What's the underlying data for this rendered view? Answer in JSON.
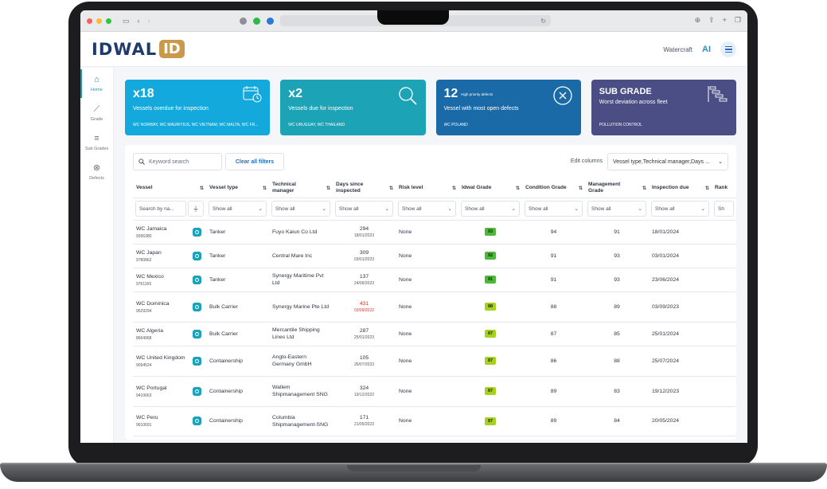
{
  "browser": {
    "address": "↻"
  },
  "header": {
    "logo_text": "IDWAL",
    "logo_badge": "ID",
    "nav_link": "Watercraft",
    "ai_label": "AI"
  },
  "sidebar": {
    "items": [
      {
        "label": "Home",
        "icon": "home-icon",
        "glyph": "⌂"
      },
      {
        "label": "Grade",
        "icon": "chart-icon",
        "glyph": "⟋"
      },
      {
        "label": "Sub Grades",
        "icon": "bars-icon",
        "glyph": "≡"
      },
      {
        "label": "Defects",
        "icon": "close-circle-icon",
        "glyph": "⊗"
      }
    ]
  },
  "cards": [
    {
      "big": "x18",
      "sub": "",
      "desc": "Vessels overdue for inspection",
      "ships": "WC NORWAY, WC MAURITIUS, WC VIETNAM, WC MALTA, WC FR...",
      "color": "#14a9dc",
      "icon": "calendar-clock-icon"
    },
    {
      "big": "x2",
      "sub": "",
      "desc": "Vessels due for inspection",
      "ships": "WC URUGUAY, WC THAILAND",
      "color": "#1ca4b6",
      "icon": "magnifier-icon"
    },
    {
      "big": "12",
      "sub": "High priority defects",
      "desc": "Vessel with most open defects",
      "ships": "WC POLAND",
      "color": "#1b6aa8",
      "icon": "x-circle-icon"
    },
    {
      "big": "SUB GRADE",
      "sub": "",
      "desc": "Worst deviation across fleet",
      "ships": "POLLUTION CONTROL",
      "color": "#4b4d85",
      "icon": "gantt-icon"
    }
  ],
  "toolbar": {
    "search_placeholder": "Keyword search",
    "clear_label": "Clear all filters",
    "edit_label": "Edit columns",
    "edit_value": "Vessel type,Technical manager,Days ..."
  },
  "table": {
    "headers": [
      "Vessel",
      "Vessel type",
      "Technical manager",
      "Days since inspected",
      "Risk level",
      "Idwal Grade",
      "Condition Grade",
      "Management Grade",
      "Inspection due",
      "Rank"
    ],
    "filters": {
      "search_placeholder": "Search by na...",
      "show_all": "Show all",
      "last": "Sh"
    },
    "rows": [
      {
        "vessel": "WC Jamaica",
        "imo": "9396380",
        "type": "Tanker",
        "manager": "Fuyo Kaiun Co Ltd",
        "days": "294",
        "days_date": "18/01/2023",
        "overdue": false,
        "risk": "None",
        "grade": "93",
        "grade_color": "#4fb83a",
        "condition": "94",
        "management": "91",
        "due": "18/01/2024"
      },
      {
        "vessel": "WC Japan",
        "imo": "9780862",
        "type": "Tanker",
        "manager": "Central Mare Inc",
        "days": "309",
        "days_date": "03/01/2023",
        "overdue": false,
        "risk": "None",
        "grade": "92",
        "grade_color": "#4fb83a",
        "condition": "91",
        "management": "93",
        "due": "03/01/2024"
      },
      {
        "vessel": "WC Mexico",
        "imo": "9761165",
        "type": "Tanker",
        "manager": "Synergy Maritime Pvt Ltd",
        "days": "137",
        "days_date": "24/06/2023",
        "overdue": false,
        "risk": "None",
        "grade": "91",
        "grade_color": "#4fb83a",
        "condition": "91",
        "management": "93",
        "due": "23/06/2024"
      },
      {
        "vessel": "WC Dominica",
        "imo": "9529294",
        "type": "Bulk Carrier",
        "manager": "Synergy Marine Pte Ltd",
        "days": "431",
        "days_date": "03/09/2022",
        "overdue": true,
        "risk": "None",
        "grade": "88",
        "grade_color": "#a6d11e",
        "condition": "88",
        "management": "89",
        "due": "03/09/2023"
      },
      {
        "vessel": "WC Algeria",
        "imo": "8664968",
        "type": "Bulk Carrier",
        "manager": "Mercantile Shipping Lines Ltd",
        "days": "287",
        "days_date": "25/01/2023",
        "overdue": false,
        "risk": "None",
        "grade": "87",
        "grade_color": "#a6d11e",
        "condition": "87",
        "management": "85",
        "due": "25/01/2024"
      },
      {
        "vessel": "WC United Kingdom",
        "imo": "9094524",
        "type": "Containership",
        "manager": "Anglo-Eastern Germany GmbH",
        "days": "105",
        "days_date": "26/07/2023",
        "overdue": false,
        "risk": "None",
        "grade": "87",
        "grade_color": "#a6d11e",
        "condition": "86",
        "management": "88",
        "due": "25/07/2024"
      },
      {
        "vessel": "WC Portugal",
        "imo": "9410663",
        "type": "Containership",
        "manager": "Wallem Shipmanagement SNG",
        "days": "324",
        "days_date": "19/12/2022",
        "overdue": false,
        "risk": "None",
        "grade": "87",
        "grade_color": "#a6d11e",
        "condition": "89",
        "management": "83",
        "due": "19/12/2023"
      },
      {
        "vessel": "WC Peru",
        "imo": "9610691",
        "type": "Containership",
        "manager": "Columbia Shipmanagement-SNG",
        "days": "171",
        "days_date": "21/05/2023",
        "overdue": false,
        "risk": "None",
        "grade": "87",
        "grade_color": "#a6d11e",
        "condition": "89",
        "management": "84",
        "due": "20/05/2024"
      }
    ]
  }
}
